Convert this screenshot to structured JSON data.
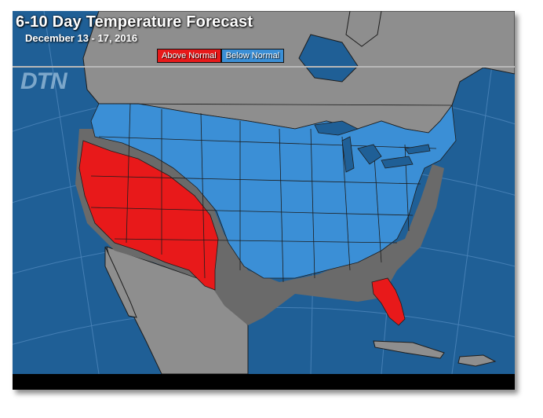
{
  "map": {
    "title": "6-10 Day Temperature Forecast",
    "subtitle": "December 13 - 17, 2016",
    "watermark": "DTN",
    "legend": [
      {
        "label": "Above Normal",
        "color": "#e8191a"
      },
      {
        "label": "Below Normal",
        "color": "#3b8fd6"
      }
    ],
    "colors": {
      "ocean": "#1f5f96",
      "land": "#8e8e8e",
      "near_normal": "#6a6a6a",
      "above_normal": "#e8191a",
      "below_normal": "#3b8fd6",
      "borders": "#1d1d1d"
    }
  }
}
